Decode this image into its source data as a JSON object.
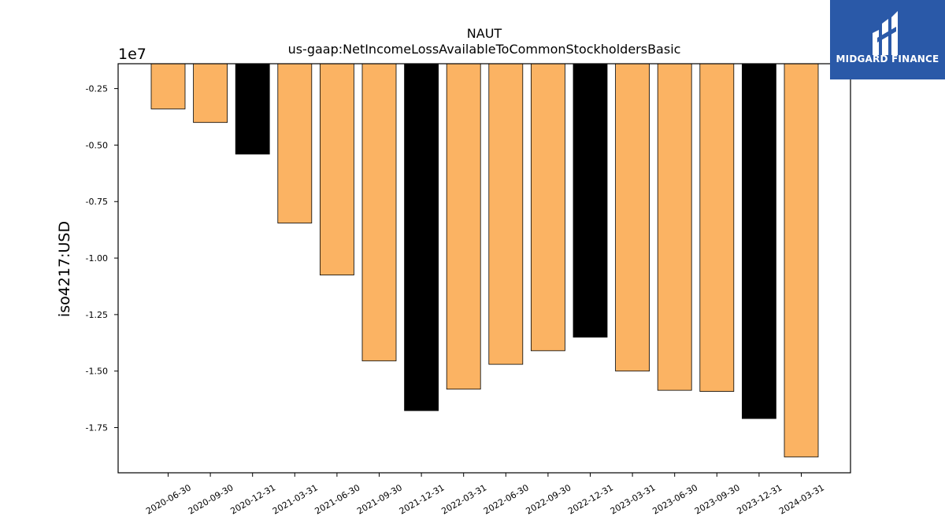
{
  "logo": {
    "brand": "MIDGARD FINANCE"
  },
  "colors": {
    "highlight": "#000000",
    "default": "#fbb363",
    "edge": "#000000"
  },
  "chart_data": {
    "type": "bar",
    "title": "NAUT",
    "subtitle": "us-gaap:NetIncomeLossAvailableToCommonStockholdersBasic",
    "ylabel": "iso4217:USD",
    "offset_text": "1e7",
    "categories": [
      "2020-06-30",
      "2020-09-30",
      "2020-12-31",
      "2021-03-31",
      "2021-06-30",
      "2021-09-30",
      "2021-12-31",
      "2022-03-31",
      "2022-06-30",
      "2022-09-30",
      "2022-12-31",
      "2023-03-31",
      "2023-06-30",
      "2023-09-30",
      "2023-12-31",
      "2024-03-31"
    ],
    "values": [
      -3400000,
      -4000000,
      -5400000,
      -8450000,
      -10750000,
      -14550000,
      -16750000,
      -15800000,
      -14700000,
      -14100000,
      -13500000,
      -15000000,
      -15850000,
      -15900000,
      -17100000,
      -18800000
    ],
    "highlight": [
      false,
      false,
      true,
      false,
      false,
      false,
      true,
      false,
      false,
      false,
      true,
      false,
      false,
      false,
      true,
      false
    ],
    "ylim": [
      -19500000,
      -1400000
    ],
    "yticks": [
      -2500000,
      -5000000,
      -7500000,
      -10000000,
      -12500000,
      -15000000,
      -17500000
    ],
    "ytick_labels": [
      "-0.25",
      "-0.50",
      "-0.75",
      "-1.00",
      "-1.25",
      "-1.50",
      "-1.75"
    ],
    "grid": false
  }
}
